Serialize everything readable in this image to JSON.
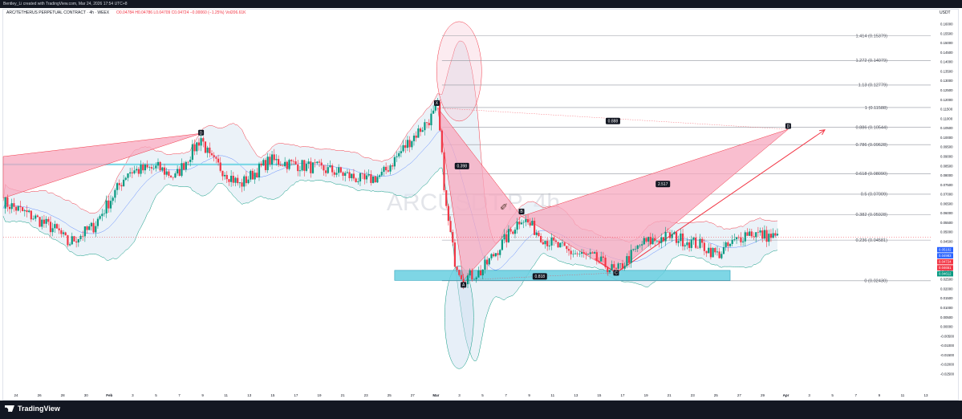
{
  "header": {
    "creator_line": "Bentley_Li created with TradingView.com, Mar 24, 2026 17:54 UTC+8",
    "symbol_line": "ARC/TETHERUS PERPETUAL CONTRACT · 4h · WEEX",
    "ohlc_line": "O0.04784  H0.04786  L0.04709  C0.04724  −0.00060 (−1.25%)  Vol206.61K",
    "currency": "USDT"
  },
  "footer": {
    "brand": "TradingView"
  },
  "watermark": "ARCUSDT.P, 4h",
  "colors": {
    "up": "#089981",
    "down": "#f23645",
    "pattern_fill": "#f7a8bf",
    "band_fill": "#dbe7f3",
    "zone": "#67cfe0",
    "fib_line": "#9598a1"
  },
  "chart_data": {
    "type": "candlestick",
    "title": "",
    "ylabel": "USDT",
    "ylim": [
      -0.03,
      0.165
    ],
    "y_ticks": [
      "0.16000",
      "0.15500",
      "0.15000",
      "0.14500",
      "0.14000",
      "0.13500",
      "0.13000",
      "0.12500",
      "0.12000",
      "0.11500",
      "0.11000",
      "0.10500",
      "0.10000",
      "0.09500",
      "0.09000",
      "0.08500",
      "0.08000",
      "0.07500",
      "0.07000",
      "0.06500",
      "0.06000",
      "0.05500",
      "0.05000",
      "0.04500",
      "0.04000",
      "0.03500",
      "0.03000",
      "0.02500",
      "0.02000",
      "0.01500",
      "0.01000",
      "0.00500",
      "0.00000",
      "-0.00500",
      "-0.01000",
      "-0.01500",
      "-0.02000",
      "-0.02500"
    ],
    "x_ticks": [
      "24",
      "26",
      "28",
      "30",
      "Feb",
      "3",
      "5",
      "7",
      "9",
      "11",
      "13",
      "15",
      "17",
      "19",
      "21",
      "23",
      "25",
      "27",
      "Mar",
      "3",
      "5",
      "7",
      "9",
      "11",
      "13",
      "15",
      "17",
      "19",
      "21",
      "23",
      "25",
      "27",
      "29",
      "Apr",
      "3",
      "5",
      "7",
      "9",
      "11",
      "13"
    ],
    "fibonacci": [
      {
        "ratio": "1.414",
        "price": 0.15379,
        "label": "1.414 (0.15379)"
      },
      {
        "ratio": "1.272",
        "price": 0.14079,
        "label": "1.272 (0.14079)"
      },
      {
        "ratio": "1.13",
        "price": 0.12779,
        "label": "1.13 (0.12779)"
      },
      {
        "ratio": "1",
        "price": 0.11588,
        "label": "1 (0.11588)"
      },
      {
        "ratio": "0.886",
        "price": 0.10544,
        "label": "0.886 (0.10544)"
      },
      {
        "ratio": "0.786",
        "price": 0.09628,
        "label": "0.786 (0.09628)"
      },
      {
        "ratio": "0.618",
        "price": 0.0809,
        "label": "0.618 (0.08090)"
      },
      {
        "ratio": "0.5",
        "price": 0.07009,
        "label": "0.5 (0.07009)"
      },
      {
        "ratio": "0.382",
        "price": 0.05928,
        "label": "0.382 (0.05928)"
      },
      {
        "ratio": "0.236",
        "price": 0.04581,
        "label": "0.236 (0.04581)"
      },
      {
        "ratio": "0",
        "price": 0.0243,
        "label": "0 (0.02430)"
      }
    ],
    "price_tags": [
      {
        "value": "0.05102",
        "bg": "#2962ff"
      },
      {
        "value": "0.04983",
        "bg": "#2962ff"
      },
      {
        "value": "0.04724",
        "bg": "#f23645"
      },
      {
        "value": "0.04651",
        "bg": "#f23645"
      },
      {
        "value": "0.04612",
        "bg": "#089981"
      }
    ],
    "pattern_points": [
      {
        "label": "X",
        "t": 202,
        "price": 0.1157
      },
      {
        "label": "A",
        "t": 214,
        "price": 0.0247
      },
      {
        "label": "B",
        "t": 241,
        "price": 0.0584
      },
      {
        "label": "C",
        "t": 285,
        "price": 0.0285
      },
      {
        "label": "D",
        "t": 365,
        "price": 0.1044
      }
    ],
    "pattern_ratios": [
      {
        "label": "0.398"
      },
      {
        "label": "0.818"
      },
      {
        "label": "2.517"
      },
      {
        "label": "0.888"
      }
    ],
    "earlier_pattern_point": {
      "label": "D",
      "t": 92,
      "price": 0.1022
    },
    "support_zone": {
      "t_start": 182,
      "t_end": 338,
      "price_low": 0.0245,
      "price_high": 0.0298
    },
    "cyan_level": {
      "t_start": 0,
      "t_end": 136,
      "price": 0.0858
    },
    "projection_arrow": {
      "t_start": 285,
      "price_start": 0.0285,
      "t_end": 382,
      "price_end": 0.1041
    },
    "current_price": 0.04724,
    "ohlc": []
  }
}
